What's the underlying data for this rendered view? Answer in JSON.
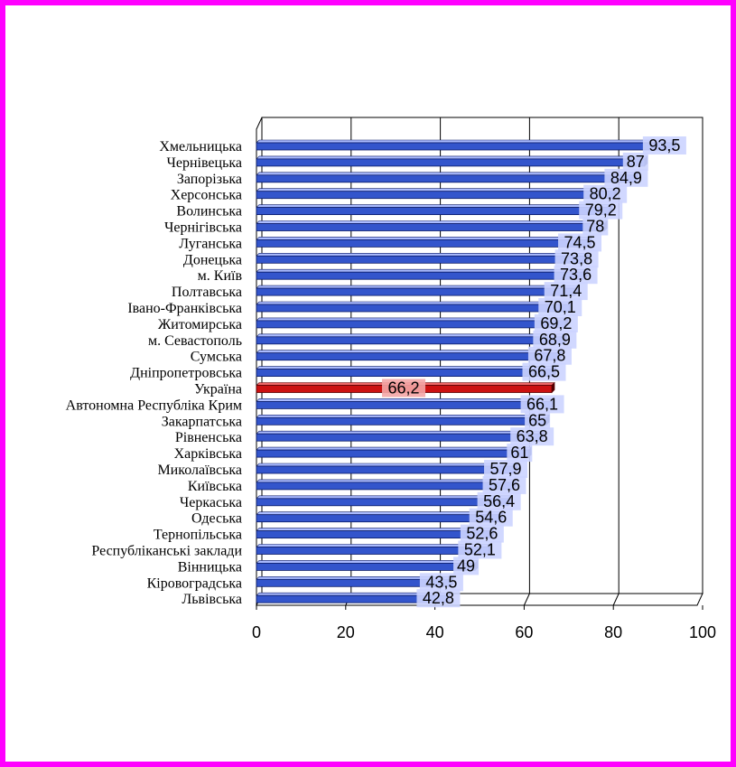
{
  "chart_data": {
    "type": "bar",
    "orientation": "horizontal",
    "title": "",
    "xlabel": "",
    "ylabel": "",
    "xlim": [
      0,
      100
    ],
    "ticks": [
      "0",
      "20",
      "40",
      "60",
      "80",
      "100"
    ],
    "grid": true,
    "legend": "none",
    "categories": [
      "Хмельницька",
      "Чернівецька",
      "Запорізька",
      "Херсонська",
      "Волинська",
      "Чернігівська",
      "Луганська",
      "Донецька",
      "м. Київ",
      "Полтавська",
      "Івано-Франківська",
      "Житомирська",
      "м. Севастополь",
      "Сумська",
      "Дніпропетровська",
      "Україна",
      "Автономна Республіка Крим",
      "Закарпатська",
      "Рівненська",
      "Харківська",
      "Миколаївська",
      "Київська",
      "Черкаська",
      "Одеська",
      "Тернопільська",
      "Республіканські заклади",
      "Вінницька",
      "Кіровоградська",
      "Львівська"
    ],
    "values": [
      93.5,
      87,
      84.9,
      80.2,
      79.2,
      78,
      74.5,
      73.8,
      73.6,
      71.4,
      70.1,
      69.2,
      68.9,
      67.8,
      66.5,
      66.2,
      66.1,
      65,
      63.8,
      61,
      57.9,
      57.6,
      56.4,
      54.6,
      52.6,
      52.1,
      49,
      43.5,
      42.8
    ],
    "value_labels": [
      "93,5",
      "87",
      "84,9",
      "80,2",
      "79,2",
      "78",
      "74,5",
      "73,8",
      "73,6",
      "71,4",
      "70,1",
      "69,2",
      "68,9",
      "67,8",
      "66,5",
      "66,2",
      "66,1",
      "65",
      "63,8",
      "61",
      "57,9",
      "57,6",
      "56,4",
      "54,6",
      "52,6",
      "52,1",
      "49",
      "43,5",
      "42,8"
    ],
    "highlight": "Україна",
    "colors": {
      "bar": "#3355cc",
      "bar_dark": "#0a1a66",
      "bar_light": "#aabbff",
      "highlight": "#cc1111",
      "highlight_dark": "#550000",
      "label_bg": "#ccd4ff",
      "highlight_label_bg": "#f4a6a6",
      "frame": "#ff00ff"
    }
  }
}
